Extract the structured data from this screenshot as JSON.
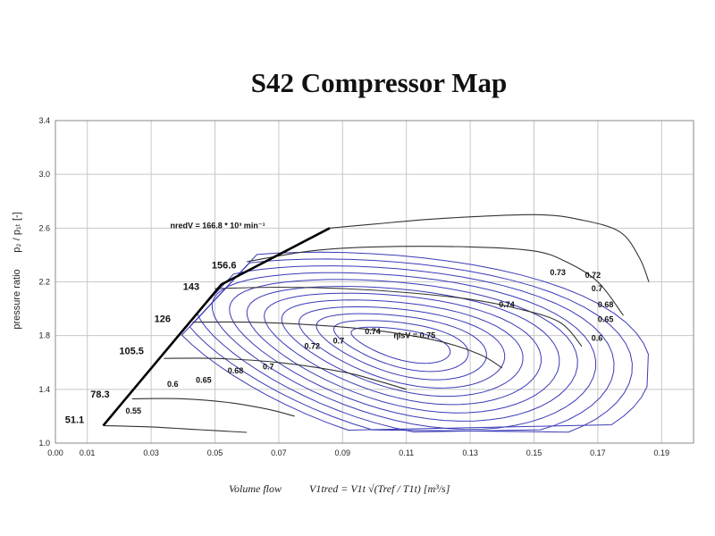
{
  "chart_data": {
    "type": "line",
    "title": "S42 Compressor Map",
    "ylabel": "pressure ratio",
    "ylabel2": "p₂ / p₁ₜ [-]",
    "xlabel": {
      "prefix": "Volume flow",
      "formula": "V1tred = V1t √(Tref / T1t)  [m³/s]"
    },
    "xlim": [
      0.0,
      0.2
    ],
    "ylim": [
      1.0,
      3.4
    ],
    "x_ticks": [
      "0.00",
      "0.01",
      "0.03",
      "0.05",
      "0.07",
      "0.09",
      "0.11",
      "0.13",
      "0.15",
      "0.17",
      "0.19"
    ],
    "x_tick_values": [
      0.0,
      0.01,
      0.03,
      0.05,
      0.07,
      0.09,
      0.11,
      0.13,
      0.15,
      0.17,
      0.19
    ],
    "y_ticks": [
      "1.0",
      "1.4",
      "1.8",
      "2.2",
      "2.6",
      "3.0",
      "3.4"
    ],
    "y_tick_values": [
      1.0,
      1.4,
      1.8,
      2.2,
      2.6,
      3.0,
      3.4
    ],
    "grid": true,
    "annotation": {
      "text": "nredV = 166.8 * 10³ min⁻¹",
      "x": 0.036,
      "y": 2.6
    },
    "surge_line": [
      [
        0.015,
        1.13
      ],
      [
        0.052,
        2.18
      ],
      [
        0.086,
        2.6
      ]
    ],
    "speed_lines": [
      {
        "label": "51.1",
        "label_x": 0.003,
        "label_y": 1.15,
        "points": [
          [
            0.015,
            1.13
          ],
          [
            0.03,
            1.12
          ],
          [
            0.045,
            1.1
          ],
          [
            0.06,
            1.08
          ]
        ]
      },
      {
        "label": "78.3",
        "label_x": 0.011,
        "label_y": 1.34,
        "points": [
          [
            0.024,
            1.33
          ],
          [
            0.04,
            1.33
          ],
          [
            0.055,
            1.3
          ],
          [
            0.067,
            1.25
          ],
          [
            0.075,
            1.2
          ]
        ]
      },
      {
        "label": "105.5",
        "label_x": 0.02,
        "label_y": 1.66,
        "points": [
          [
            0.034,
            1.63
          ],
          [
            0.05,
            1.63
          ],
          [
            0.07,
            1.6
          ],
          [
            0.09,
            1.53
          ],
          [
            0.1,
            1.47
          ],
          [
            0.11,
            1.4
          ]
        ]
      },
      {
        "label": "126",
        "label_x": 0.031,
        "label_y": 1.9,
        "points": [
          [
            0.043,
            1.9
          ],
          [
            0.06,
            1.9
          ],
          [
            0.08,
            1.88
          ],
          [
            0.1,
            1.84
          ],
          [
            0.12,
            1.76
          ],
          [
            0.133,
            1.66
          ],
          [
            0.14,
            1.56
          ]
        ]
      },
      {
        "label": "143",
        "label_x": 0.04,
        "label_y": 2.14,
        "points": [
          [
            0.05,
            2.15
          ],
          [
            0.07,
            2.16
          ],
          [
            0.09,
            2.15
          ],
          [
            0.11,
            2.12
          ],
          [
            0.13,
            2.07
          ],
          [
            0.145,
            2.0
          ],
          [
            0.158,
            1.9
          ],
          [
            0.165,
            1.72
          ]
        ]
      },
      {
        "label": "156.6",
        "label_x": 0.049,
        "label_y": 2.3,
        "points": [
          [
            0.06,
            2.35
          ],
          [
            0.08,
            2.43
          ],
          [
            0.1,
            2.46
          ],
          [
            0.13,
            2.46
          ],
          [
            0.15,
            2.43
          ],
          [
            0.16,
            2.35
          ],
          [
            0.17,
            2.2
          ],
          [
            0.178,
            1.95
          ]
        ]
      },
      {
        "label": "",
        "points": [
          [
            0.086,
            2.6
          ],
          [
            0.1,
            2.63
          ],
          [
            0.12,
            2.67
          ],
          [
            0.15,
            2.7
          ],
          [
            0.165,
            2.66
          ],
          [
            0.177,
            2.57
          ],
          [
            0.183,
            2.38
          ],
          [
            0.186,
            2.2
          ]
        ]
      }
    ],
    "efficiency_islands": [
      {
        "label": "0.55",
        "label_x": 0.022,
        "label_y": 1.22
      },
      {
        "label": "0.6",
        "label_x": 0.035,
        "label_y": 1.42
      },
      {
        "label": "0.65",
        "label_x": 0.044,
        "label_y": 1.45
      },
      {
        "label": "0.68",
        "label_x": 0.054,
        "label_y": 1.52
      },
      {
        "label": "0.7",
        "label_x": 0.065,
        "label_y": 1.55
      },
      {
        "label": "0.72",
        "label_x": 0.078,
        "label_y": 1.7
      },
      {
        "label": "0.7",
        "label_x": 0.087,
        "label_y": 1.74
      },
      {
        "label": "0.74",
        "label_x": 0.097,
        "label_y": 1.81
      },
      {
        "label": "ηisV = 0.75",
        "label_x": 0.106,
        "label_y": 1.78
      },
      {
        "label": "0.74",
        "label_x": 0.139,
        "label_y": 2.01
      },
      {
        "label": "0.73",
        "label_x": 0.155,
        "label_y": 2.25
      },
      {
        "label": "0.72",
        "label_x": 0.166,
        "label_y": 2.23
      },
      {
        "label": "0.7",
        "label_x": 0.168,
        "label_y": 2.13
      },
      {
        "label": "0.68",
        "label_x": 0.17,
        "label_y": 2.01
      },
      {
        "label": "0.65",
        "label_x": 0.17,
        "label_y": 1.9
      },
      {
        "label": "0.6",
        "label_x": 0.168,
        "label_y": 1.76
      }
    ]
  }
}
